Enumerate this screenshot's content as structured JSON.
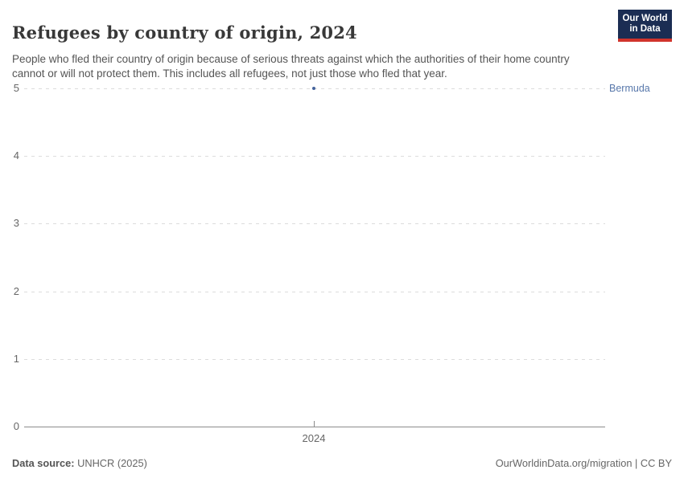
{
  "header": {
    "title": "Refugees by country of origin, 2024",
    "subtitle": "People who fled their country of origin because of serious threats against which the authorities of their home country cannot or will not protect them. This includes all refugees, not just those who fled that year.",
    "logo_line1": "Our World",
    "logo_line2": "in Data"
  },
  "chart_data": {
    "type": "scatter",
    "title": "Refugees by country of origin, 2024",
    "x": [
      2024
    ],
    "series": [
      {
        "name": "Bermuda",
        "values": [
          5
        ]
      }
    ],
    "xlabel": "",
    "ylabel": "",
    "ylim": [
      0,
      5
    ],
    "yticks": [
      0,
      1,
      2,
      3,
      4,
      5
    ],
    "xticks": [
      2024
    ],
    "grid": true,
    "legend_position": "right-of-plot",
    "point_color": "#44639c",
    "entity_label_color": "#5878ab"
  },
  "footer": {
    "source_label": "Data source:",
    "source_value": " UNHCR (2025)",
    "credit": "OurWorldinData.org/migration | CC BY"
  },
  "colors": {
    "logo_bg": "#1b2d53",
    "logo_stripe": "#d0342c",
    "gridline": "#dcdcdc",
    "axis": "#8c8c8c",
    "tick_label": "#666666",
    "title": "#383838",
    "subtitle": "#555555"
  }
}
